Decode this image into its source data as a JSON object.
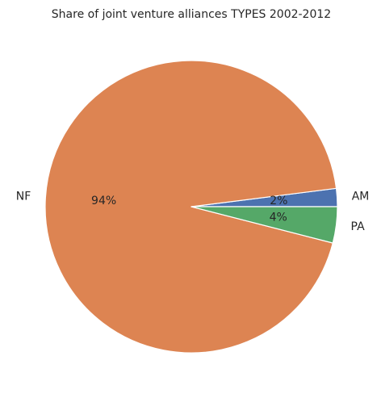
{
  "chart_data": {
    "type": "pie",
    "title": "Share of joint venture alliances TYPES 2002-2012",
    "slices": [
      {
        "label": "AM",
        "value": 2,
        "pct_label": "2%",
        "color": "#4c72b0"
      },
      {
        "label": "NF",
        "value": 94,
        "pct_label": "94%",
        "color": "#dd8452"
      },
      {
        "label": "PA",
        "value": 4,
        "pct_label": "4%",
        "color": "#55a868"
      }
    ],
    "start_angle_deg": 0,
    "direction": "counterclockwise"
  }
}
